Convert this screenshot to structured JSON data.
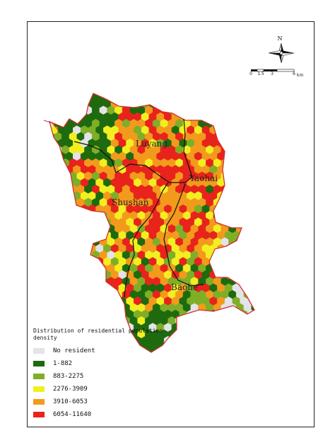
{
  "districts": [
    {
      "name": "Luyang"
    },
    {
      "name": "Yaohai"
    },
    {
      "name": "Shushan"
    },
    {
      "name": "Baohe"
    }
  ],
  "north_arrow": {
    "label": "N"
  },
  "scale_bar": {
    "ticks": [
      "0",
      "1.5",
      "3",
      "6"
    ],
    "unit": "km"
  },
  "legend": {
    "title": "Distribution of residential population density",
    "items": [
      {
        "label": "No resident",
        "color": "#e3e3e8"
      },
      {
        "label": "1-882",
        "color": "#1e6a0e"
      },
      {
        "label": "883-2275",
        "color": "#7fae27"
      },
      {
        "label": "2276-3909",
        "color": "#f2ef21"
      },
      {
        "label": "3910-6053",
        "color": "#f39a1c"
      },
      {
        "label": "6054-11640",
        "color": "#e8231b"
      }
    ]
  }
}
